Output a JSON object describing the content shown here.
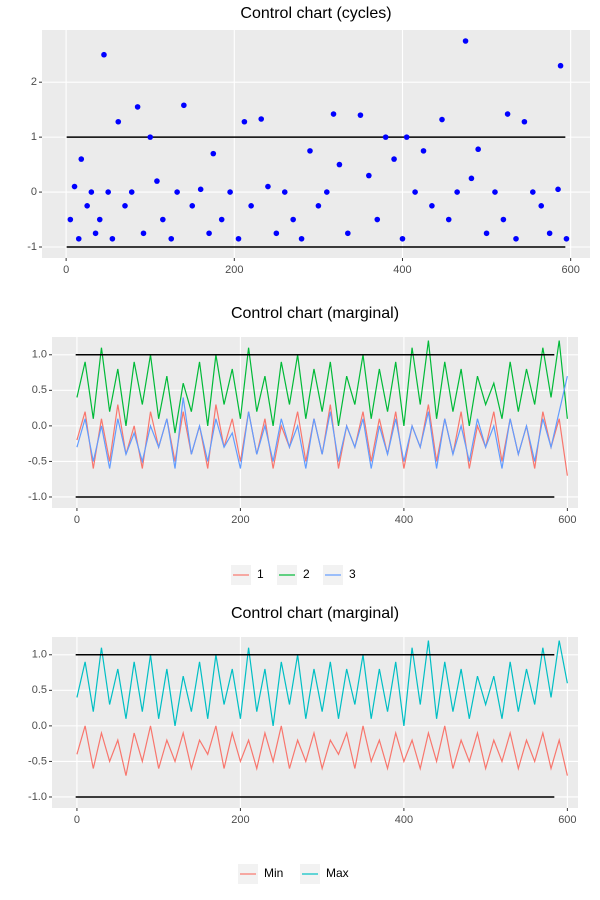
{
  "chart_data": [
    {
      "type": "scatter",
      "title": "Control chart (cycles)",
      "color": "#0000ff",
      "grid": true,
      "xlim": [
        -28.7,
        623
      ],
      "ylim": [
        -1.2,
        2.95
      ],
      "xticks": [
        0,
        200,
        400,
        600
      ],
      "yticks": [
        -1,
        0,
        1,
        2
      ],
      "control_limits": [
        1,
        -1
      ],
      "x": [
        5,
        10,
        15,
        18,
        25,
        30,
        35,
        40,
        45,
        50,
        55,
        62,
        70,
        78,
        85,
        92,
        100,
        108,
        115,
        125,
        132,
        140,
        150,
        160,
        170,
        175,
        185,
        195,
        205,
        212,
        220,
        232,
        240,
        250,
        260,
        270,
        280,
        290,
        300,
        310,
        318,
        325,
        335,
        350,
        360,
        370,
        380,
        390,
        400,
        405,
        415,
        425,
        435,
        447,
        455,
        465,
        475,
        482,
        490,
        500,
        510,
        520,
        525,
        535,
        545,
        555,
        565,
        575,
        585,
        588,
        595
      ],
      "values": [
        -0.5,
        0.1,
        -0.85,
        0.6,
        -0.25,
        0,
        -0.75,
        -0.5,
        2.5,
        0,
        -0.85,
        1.28,
        -0.25,
        0,
        1.55,
        -0.75,
        1.0,
        0.2,
        -0.5,
        -0.85,
        0,
        1.58,
        -0.25,
        0.05,
        -0.75,
        0.7,
        -0.5,
        0,
        -0.85,
        1.28,
        -0.25,
        1.33,
        0.1,
        -0.75,
        0,
        -0.5,
        -0.85,
        0.75,
        -0.25,
        0,
        1.42,
        0.5,
        -0.75,
        1.4,
        0.3,
        -0.5,
        1.0,
        0.6,
        -0.85,
        1.0,
        0,
        0.75,
        -0.25,
        1.32,
        -0.5,
        0,
        2.75,
        0.25,
        0.78,
        -0.75,
        0,
        -0.5,
        1.42,
        -0.85,
        1.28,
        0,
        -0.25,
        -0.75,
        0.05,
        2.3,
        -0.85
      ]
    },
    {
      "type": "line",
      "title": "Control chart (marginal)",
      "grid": true,
      "xlim": [
        -30.5,
        613
      ],
      "ylim": [
        -1.155,
        1.25
      ],
      "xticks": [
        0,
        200,
        400,
        600
      ],
      "yticks": [
        {
          "value": -1,
          "label": "-1.0"
        },
        -0.5,
        {
          "value": 0,
          "label": "0.0"
        },
        0.5,
        {
          "value": 1,
          "label": "1.0"
        }
      ],
      "control_limits": [
        1,
        -1
      ],
      "x": [
        0,
        10,
        20,
        30,
        40,
        50,
        60,
        70,
        80,
        90,
        100,
        110,
        120,
        130,
        140,
        150,
        160,
        170,
        180,
        190,
        200,
        210,
        220,
        230,
        240,
        250,
        260,
        270,
        280,
        290,
        300,
        310,
        320,
        330,
        340,
        350,
        360,
        370,
        380,
        390,
        400,
        410,
        420,
        430,
        440,
        450,
        460,
        470,
        480,
        490,
        500,
        510,
        520,
        530,
        540,
        550,
        560,
        570,
        580,
        590,
        600
      ],
      "series": [
        {
          "name": "1",
          "color": "#F8766D",
          "values": [
            -0.2,
            0.2,
            -0.6,
            0.1,
            -0.5,
            0.3,
            -0.4,
            0.0,
            -0.6,
            0.2,
            -0.3,
            0.1,
            -0.5,
            0.2,
            -0.4,
            0.0,
            -0.6,
            0.3,
            -0.3,
            0.1,
            -0.5,
            0.2,
            -0.4,
            0.1,
            -0.6,
            0.0,
            -0.3,
            0.2,
            -0.5,
            0.1,
            -0.4,
            0.3,
            -0.6,
            0.0,
            -0.3,
            0.2,
            -0.5,
            0.1,
            -0.4,
            0.2,
            -0.6,
            0.0,
            -0.3,
            0.3,
            -0.5,
            0.1,
            -0.4,
            0.2,
            -0.6,
            0.0,
            -0.3,
            0.2,
            -0.5,
            0.1,
            -0.4,
            0.0,
            -0.6,
            0.2,
            -0.3,
            0.1,
            -0.7
          ]
        },
        {
          "name": "2",
          "color": "#00BA38",
          "values": [
            0.4,
            0.9,
            0.1,
            1.1,
            0.2,
            0.8,
            0.0,
            0.9,
            0.3,
            1.0,
            0.1,
            0.7,
            -0.1,
            0.6,
            0.2,
            0.9,
            0.0,
            1.0,
            0.3,
            0.8,
            0.1,
            1.1,
            0.2,
            0.7,
            0.0,
            0.9,
            0.3,
            1.0,
            0.1,
            0.8,
            0.2,
            0.9,
            0.0,
            0.7,
            0.3,
            1.0,
            0.1,
            0.8,
            0.2,
            0.9,
            0.0,
            1.1,
            0.3,
            1.2,
            0.1,
            0.9,
            0.2,
            0.8,
            0.0,
            0.7,
            0.3,
            0.6,
            0.1,
            0.9,
            0.2,
            0.8,
            0.3,
            1.1,
            0.4,
            1.2,
            0.1
          ]
        },
        {
          "name": "3",
          "color": "#619CFF",
          "values": [
            -0.3,
            0.1,
            -0.5,
            0.0,
            -0.6,
            0.1,
            -0.4,
            -0.1,
            -0.5,
            0.0,
            -0.3,
            0.1,
            -0.6,
            0.4,
            -0.4,
            0.0,
            -0.5,
            0.1,
            -0.3,
            -0.1,
            -0.6,
            0.2,
            -0.4,
            0.0,
            -0.5,
            0.1,
            -0.3,
            0.0,
            -0.6,
            0.1,
            -0.4,
            0.2,
            -0.5,
            0.0,
            -0.3,
            0.1,
            -0.6,
            0.0,
            -0.4,
            0.1,
            -0.5,
            0.0,
            -0.3,
            0.2,
            -0.6,
            0.1,
            -0.4,
            0.0,
            -0.5,
            0.1,
            -0.3,
            0.0,
            -0.6,
            0.1,
            -0.4,
            0.0,
            -0.5,
            0.1,
            -0.3,
            0.2,
            0.7
          ]
        }
      ]
    },
    {
      "type": "line",
      "title": "Control chart (marginal)",
      "grid": true,
      "xlim": [
        -30.5,
        613
      ],
      "ylim": [
        -1.155,
        1.25
      ],
      "xticks": [
        0,
        200,
        400,
        600
      ],
      "yticks": [
        {
          "value": -1,
          "label": "-1.0"
        },
        -0.5,
        {
          "value": 0,
          "label": "0.0"
        },
        0.5,
        {
          "value": 1,
          "label": "1.0"
        }
      ],
      "control_limits": [
        1,
        -1
      ],
      "x": [
        0,
        10,
        20,
        30,
        40,
        50,
        60,
        70,
        80,
        90,
        100,
        110,
        120,
        130,
        140,
        150,
        160,
        170,
        180,
        190,
        200,
        210,
        220,
        230,
        240,
        250,
        260,
        270,
        280,
        290,
        300,
        310,
        320,
        330,
        340,
        350,
        360,
        370,
        380,
        390,
        400,
        410,
        420,
        430,
        440,
        450,
        460,
        470,
        480,
        490,
        500,
        510,
        520,
        530,
        540,
        550,
        560,
        570,
        580,
        590,
        600
      ],
      "series": [
        {
          "name": "Min",
          "color": "#F8766D",
          "values": [
            -0.4,
            0.0,
            -0.6,
            -0.1,
            -0.5,
            -0.2,
            -0.7,
            -0.1,
            -0.5,
            0.0,
            -0.6,
            -0.2,
            -0.5,
            -0.1,
            -0.6,
            -0.2,
            -0.4,
            0.0,
            -0.6,
            -0.1,
            -0.5,
            -0.2,
            -0.6,
            -0.1,
            -0.5,
            0.0,
            -0.6,
            -0.2,
            -0.5,
            -0.1,
            -0.6,
            -0.2,
            -0.4,
            -0.1,
            -0.6,
            0.0,
            -0.5,
            -0.2,
            -0.6,
            -0.1,
            -0.5,
            -0.2,
            -0.6,
            -0.1,
            -0.5,
            0.0,
            -0.6,
            -0.2,
            -0.5,
            -0.1,
            -0.6,
            -0.2,
            -0.5,
            -0.1,
            -0.6,
            -0.2,
            -0.5,
            -0.1,
            -0.6,
            -0.2,
            -0.7
          ]
        },
        {
          "name": "Max",
          "color": "#00BFC4",
          "values": [
            0.4,
            0.9,
            0.2,
            1.1,
            0.3,
            0.8,
            0.1,
            0.9,
            0.2,
            1.0,
            0.1,
            0.8,
            0.0,
            0.7,
            0.2,
            0.9,
            0.1,
            1.0,
            0.3,
            0.8,
            0.1,
            1.1,
            0.2,
            0.8,
            0.0,
            0.9,
            0.3,
            1.0,
            0.1,
            0.8,
            0.2,
            0.9,
            0.1,
            0.8,
            0.3,
            1.0,
            0.1,
            0.8,
            0.2,
            0.9,
            0.0,
            1.1,
            0.3,
            1.2,
            0.1,
            0.9,
            0.2,
            0.8,
            0.1,
            0.7,
            0.3,
            0.7,
            0.1,
            0.9,
            0.2,
            0.8,
            0.3,
            1.1,
            0.4,
            1.2,
            0.6
          ]
        }
      ]
    }
  ]
}
